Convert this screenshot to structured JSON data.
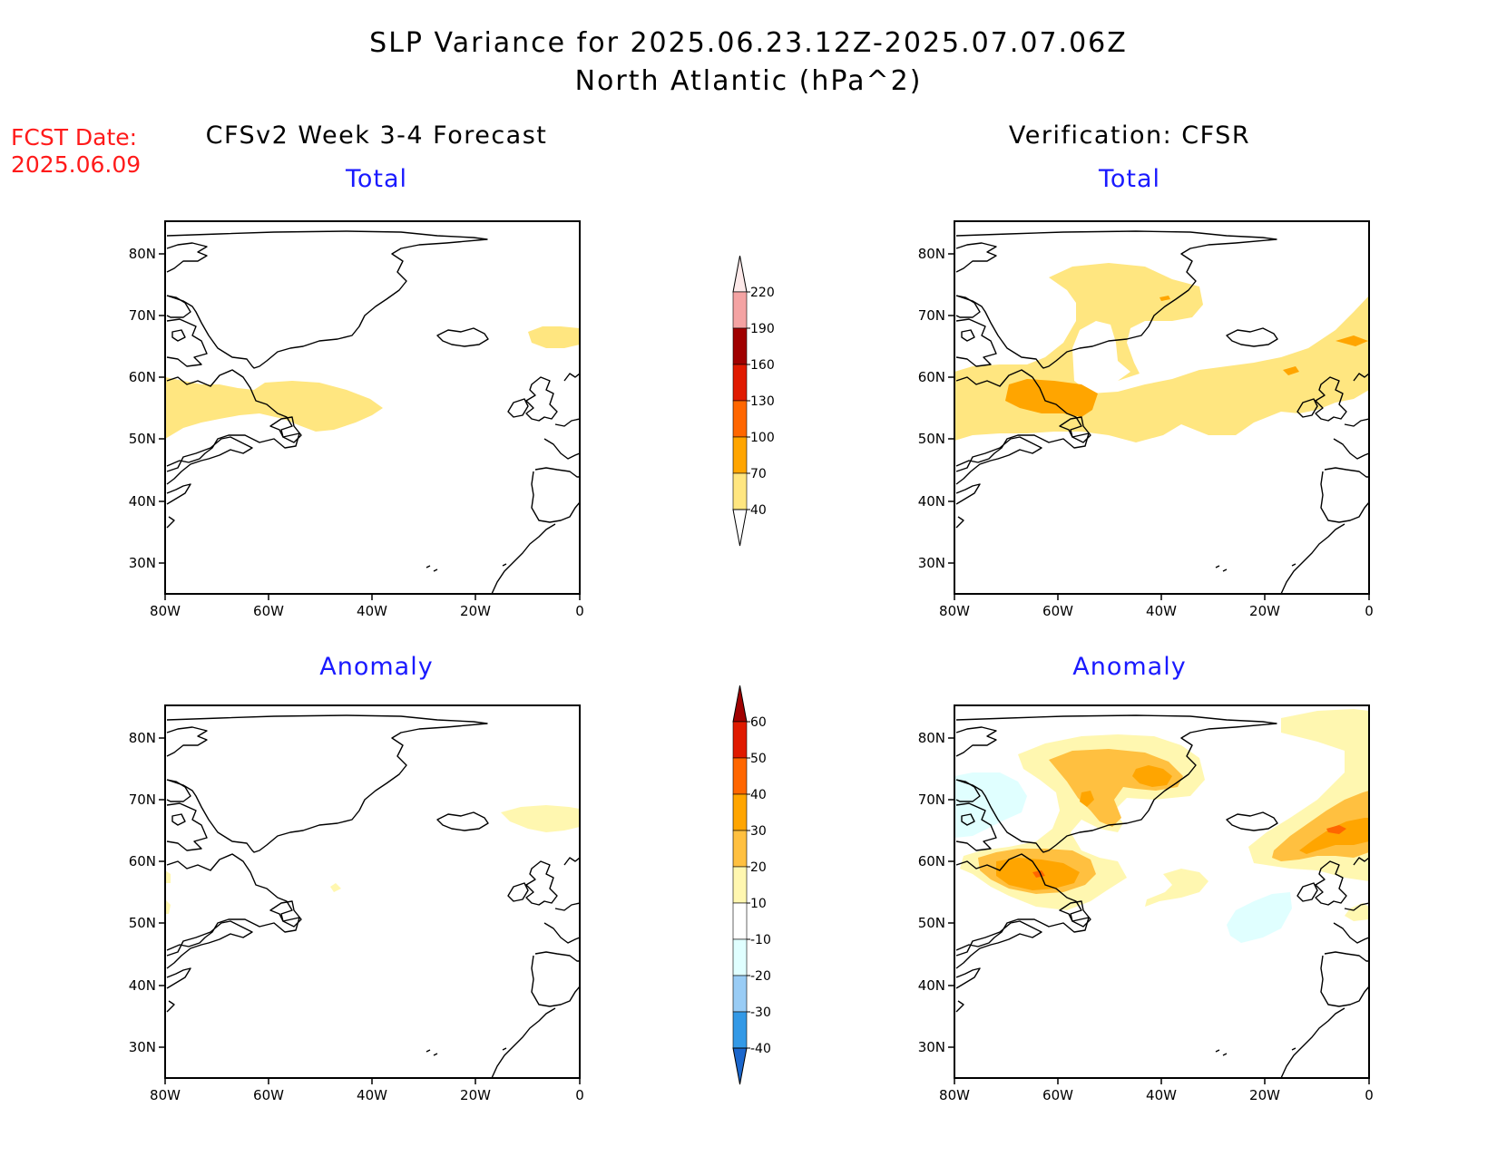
{
  "title": {
    "line1": "SLP Variance for 2025.06.23.12Z-2025.07.07.06Z",
    "line2": "North Atlantic (hPa^2)"
  },
  "fcst": {
    "label": "FCST Date:",
    "date": "2025.06.09"
  },
  "columns": {
    "left": "CFSv2 Week 3-4 Forecast",
    "right": "Verification: CFSR"
  },
  "panels": [
    {
      "title": "Total",
      "source": "forecast"
    },
    {
      "title": "Total",
      "source": "verification"
    },
    {
      "title": "Anomaly",
      "source": "forecast"
    },
    {
      "title": "Anomaly",
      "source": "verification"
    }
  ],
  "axes": {
    "lat_labels": [
      "80N",
      "70N",
      "60N",
      "50N",
      "40N",
      "30N"
    ],
    "lon_labels": [
      "80W",
      "60W",
      "40W",
      "20W",
      "0"
    ]
  },
  "colorbar_total": {
    "labels": [
      "220",
      "190",
      "160",
      "130",
      "100",
      "70",
      "40"
    ],
    "colors": [
      "#fde9e9",
      "#f4a3a3",
      "#a00000",
      "#e01a00",
      "#ff6600",
      "#ffa500",
      "#ffe680",
      "#ffffff"
    ]
  },
  "colorbar_anomaly": {
    "labels": [
      "60",
      "50",
      "40",
      "30",
      "20",
      "10",
      "-10",
      "-20",
      "-30",
      "-40"
    ],
    "colors": [
      "#a00000",
      "#e01a00",
      "#ff6600",
      "#ffa500",
      "#ffc040",
      "#fff7b0",
      "#ffffff",
      "#e0ffff",
      "#99ccf5",
      "#3399e6",
      "#1a66cc"
    ]
  },
  "shading_colors": {
    "light_yellow": "#fff7b0",
    "yellow": "#ffe680",
    "light_orange": "#ffc040",
    "orange": "#ffa500",
    "dark_orange": "#ff6600",
    "light_cyan": "#e0ffff"
  }
}
